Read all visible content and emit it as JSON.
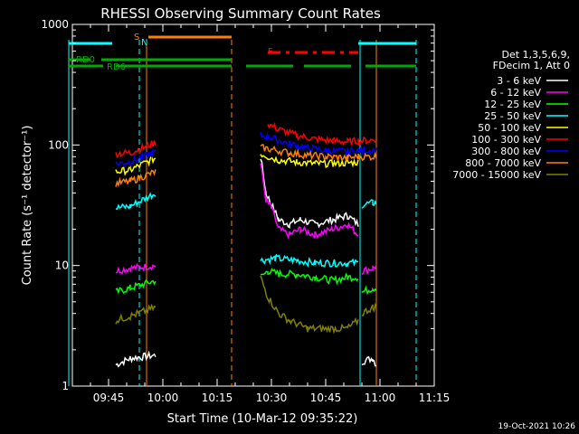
{
  "chart_data": {
    "type": "line",
    "title": "RHESSI Observing Summary Count Rates",
    "xlabel": "Start Time (10-Mar-12 09:35:22)",
    "ylabel": "Count Rate (s⁻¹ detector⁻¹)",
    "yscale": "log",
    "ylim": [
      1,
      1000
    ],
    "xlim_minutes": [
      0,
      100
    ],
    "x_ticks": [
      {
        "t": 10,
        "label": "09:45"
      },
      {
        "t": 25,
        "label": "10:00"
      },
      {
        "t": 40,
        "label": "10:15"
      },
      {
        "t": 55,
        "label": "10:30"
      },
      {
        "t": 70,
        "label": "10:45"
      },
      {
        "t": 85,
        "label": "11:00"
      },
      {
        "t": 100,
        "label": "11:15"
      }
    ],
    "y_ticks": [
      {
        "v": 1,
        "label": "1"
      },
      {
        "v": 10,
        "label": "10"
      },
      {
        "v": 100,
        "label": "100"
      },
      {
        "v": 1000,
        "label": "1000"
      }
    ],
    "legend_header": [
      "Det 1,3,5,6,9,",
      "FDecim 1, Att 0"
    ],
    "series": [
      {
        "name": "3 - 6 keV",
        "color": "#ffffff",
        "segments": [
          [
            [
              12,
              1.5
            ],
            [
              16,
              1.7
            ],
            [
              23,
              1.8
            ]
          ],
          [
            [
              52,
              80
            ],
            [
              53.5,
              40
            ],
            [
              55,
              32
            ],
            [
              57,
              24
            ],
            [
              60,
              22
            ],
            [
              63,
              24
            ],
            [
              67,
              22
            ],
            [
              72,
              24
            ],
            [
              76,
              26
            ],
            [
              79,
              22
            ]
          ],
          [
            [
              80,
              1.6
            ],
            [
              83,
              1.7
            ],
            [
              84,
              1.5
            ]
          ]
        ]
      },
      {
        "name": "6 - 12 keV",
        "color": "#ff00ff",
        "segments": [
          [
            [
              12,
              9
            ],
            [
              16,
              9.5
            ],
            [
              23,
              10
            ]
          ],
          [
            [
              52,
              70
            ],
            [
              53.5,
              35
            ],
            [
              55,
              30
            ],
            [
              57,
              20
            ],
            [
              60,
              18
            ],
            [
              63,
              20
            ],
            [
              67,
              18
            ],
            [
              72,
              20
            ],
            [
              76,
              22
            ],
            [
              79,
              18
            ]
          ],
          [
            [
              80,
              9
            ],
            [
              83,
              9.5
            ],
            [
              84,
              10
            ]
          ]
        ]
      },
      {
        "name": "12 - 25 keV",
        "color": "#00ff00",
        "segments": [
          [
            [
              12,
              6
            ],
            [
              16,
              6.5
            ],
            [
              23,
              7.5
            ]
          ],
          [
            [
              52,
              8
            ],
            [
              54,
              9
            ],
            [
              57,
              8.5
            ],
            [
              62,
              8.5
            ],
            [
              67,
              8
            ],
            [
              72,
              7.5
            ],
            [
              76,
              8
            ],
            [
              79,
              8
            ]
          ],
          [
            [
              80,
              6
            ],
            [
              83,
              6.5
            ],
            [
              84,
              6.5
            ]
          ]
        ]
      },
      {
        "name": "25 - 50 keV",
        "color": "#00ffff",
        "segments": [
          [
            [
              12,
              30
            ],
            [
              16,
              31
            ],
            [
              23,
              40
            ]
          ],
          [
            [
              52,
              11
            ],
            [
              56,
              11.5
            ],
            [
              62,
              11
            ],
            [
              67,
              10.5
            ],
            [
              72,
              10.5
            ],
            [
              76,
              10.5
            ],
            [
              79,
              10.5
            ]
          ],
          [
            [
              80,
              32
            ],
            [
              83,
              33
            ],
            [
              84,
              33
            ]
          ]
        ]
      },
      {
        "name": "50 - 100 keV",
        "color": "#ffff00",
        "segments": [
          [
            [
              12,
              60
            ],
            [
              16,
              62
            ],
            [
              23,
              78
            ]
          ],
          [
            [
              52,
              85
            ],
            [
              54,
              80
            ],
            [
              57,
              75
            ],
            [
              62,
              72
            ],
            [
              67,
              70
            ],
            [
              72,
              70
            ],
            [
              76,
              71
            ],
            [
              79,
              72
            ]
          ]
        ]
      },
      {
        "name": "100 - 300 keV",
        "color": "#ff0000",
        "segments": [
          [
            [
              12,
              85
            ],
            [
              16,
              86
            ],
            [
              23,
              105
            ]
          ],
          [
            [
              54,
              150
            ],
            [
              57,
              135
            ],
            [
              62,
              120
            ],
            [
              67,
              112
            ],
            [
              72,
              108
            ],
            [
              76,
              106
            ],
            [
              79,
              108
            ],
            [
              84,
              110
            ]
          ]
        ]
      },
      {
        "name": "300 - 800 keV",
        "color": "#0000ff",
        "segments": [
          [
            [
              12,
              70
            ],
            [
              16,
              72
            ],
            [
              23,
              88
            ]
          ],
          [
            [
              52,
              120
            ],
            [
              55,
              115
            ],
            [
              60,
              102
            ],
            [
              65,
              95
            ],
            [
              70,
              90
            ],
            [
              76,
              88
            ],
            [
              79,
              90
            ],
            [
              84,
              90
            ]
          ]
        ]
      },
      {
        "name": "800 - 7000 keV",
        "color": "#ff8000",
        "segments": [
          [
            [
              12,
              48
            ],
            [
              16,
              50
            ],
            [
              23,
              60
            ]
          ],
          [
            [
              52,
              95
            ],
            [
              55,
              92
            ],
            [
              60,
              86
            ],
            [
              65,
              82
            ],
            [
              70,
              80
            ],
            [
              76,
              78
            ],
            [
              79,
              80
            ],
            [
              84,
              80
            ]
          ]
        ]
      },
      {
        "name": "7000 - 15000 keV",
        "color": "#808000",
        "segments": [
          [
            [
              12,
              3.5
            ],
            [
              16,
              3.8
            ],
            [
              23,
              4.5
            ]
          ],
          [
            [
              52,
              8
            ],
            [
              54,
              5.5
            ],
            [
              57,
              4
            ],
            [
              60,
              3.5
            ],
            [
              65,
              3
            ],
            [
              70,
              3
            ],
            [
              76,
              3
            ],
            [
              79,
              3.5
            ]
          ],
          [
            [
              80,
              4
            ],
            [
              83,
              4.5
            ],
            [
              84,
              4.5
            ]
          ]
        ]
      }
    ],
    "flags": [
      {
        "label": "RD0",
        "color": "#00aa00",
        "segments": [
          [
            -1,
            8.5
          ],
          [
            12,
            44
          ],
          [
            48,
            61
          ],
          [
            64,
            77
          ],
          [
            81,
            95
          ]
        ]
      },
      {
        "label": "RD6",
        "color": "#00aa00",
        "segments": [
          [
            -1,
            5
          ],
          [
            8,
            44
          ]
        ]
      },
      {
        "label": "",
        "color": "#00ffff",
        "segments": [
          [
            -1,
            11
          ],
          [
            79,
            95
          ]
        ]
      },
      {
        "label": "S",
        "color": "#ff8000",
        "segments": []
      },
      {
        "label": "N",
        "color": "#00ffff",
        "segments": []
      },
      {
        "label": "",
        "color": "#ff8000",
        "segments": [
          [
            21,
            44
          ]
        ]
      },
      {
        "label": "F",
        "color": "#ff0000",
        "segments": [
          [
            54,
            79
          ]
        ]
      }
    ],
    "vertical_markers": [
      {
        "t": -1,
        "color": "#00ffff",
        "style": "solid"
      },
      {
        "t": 18.5,
        "color": "#00ffff",
        "style": "dashed"
      },
      {
        "t": 20.5,
        "color": "#ff8000",
        "style": "solid"
      },
      {
        "t": 44,
        "color": "#ff8000",
        "style": "dashed"
      },
      {
        "t": 79.5,
        "color": "#00ffff",
        "style": "solid"
      },
      {
        "t": 84,
        "color": "#ff8000",
        "style": "solid"
      },
      {
        "t": 95,
        "color": "#00ffff",
        "style": "dashed"
      }
    ],
    "footer_date": "19-Oct-2021 10:26"
  }
}
